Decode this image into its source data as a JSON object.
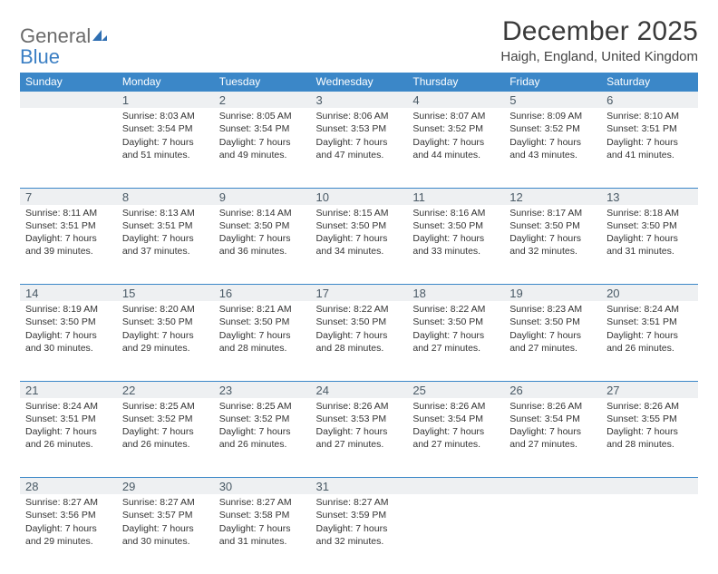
{
  "brand": {
    "general": "General",
    "blue": "Blue"
  },
  "title": "December 2025",
  "subtitle": "Haigh, England, United Kingdom",
  "weekdays": [
    "Sunday",
    "Monday",
    "Tuesday",
    "Wednesday",
    "Thursday",
    "Friday",
    "Saturday"
  ],
  "colors": {
    "header_bg": "#3b87c8",
    "header_text": "#ffffff",
    "daynum_bg": "#eef0f2",
    "daynum_text": "#4a5a66",
    "rule": "#3b87c8",
    "body_text": "#333333",
    "logo_gray": "#6b6b6b",
    "logo_blue": "#3b7fc4"
  },
  "fonts": {
    "title_size": 30,
    "subtitle_size": 15,
    "weekday_size": 12,
    "daynum_size": 13,
    "cell_size": 10.5
  },
  "weeks": [
    {
      "nums": [
        "",
        "1",
        "2",
        "3",
        "4",
        "5",
        "6"
      ],
      "cells": [
        "",
        "Sunrise: 8:03 AM\nSunset: 3:54 PM\nDaylight: 7 hours\nand 51 minutes.",
        "Sunrise: 8:05 AM\nSunset: 3:54 PM\nDaylight: 7 hours\nand 49 minutes.",
        "Sunrise: 8:06 AM\nSunset: 3:53 PM\nDaylight: 7 hours\nand 47 minutes.",
        "Sunrise: 8:07 AM\nSunset: 3:52 PM\nDaylight: 7 hours\nand 44 minutes.",
        "Sunrise: 8:09 AM\nSunset: 3:52 PM\nDaylight: 7 hours\nand 43 minutes.",
        "Sunrise: 8:10 AM\nSunset: 3:51 PM\nDaylight: 7 hours\nand 41 minutes."
      ]
    },
    {
      "nums": [
        "7",
        "8",
        "9",
        "10",
        "11",
        "12",
        "13"
      ],
      "cells": [
        "Sunrise: 8:11 AM\nSunset: 3:51 PM\nDaylight: 7 hours\nand 39 minutes.",
        "Sunrise: 8:13 AM\nSunset: 3:51 PM\nDaylight: 7 hours\nand 37 minutes.",
        "Sunrise: 8:14 AM\nSunset: 3:50 PM\nDaylight: 7 hours\nand 36 minutes.",
        "Sunrise: 8:15 AM\nSunset: 3:50 PM\nDaylight: 7 hours\nand 34 minutes.",
        "Sunrise: 8:16 AM\nSunset: 3:50 PM\nDaylight: 7 hours\nand 33 minutes.",
        "Sunrise: 8:17 AM\nSunset: 3:50 PM\nDaylight: 7 hours\nand 32 minutes.",
        "Sunrise: 8:18 AM\nSunset: 3:50 PM\nDaylight: 7 hours\nand 31 minutes."
      ]
    },
    {
      "nums": [
        "14",
        "15",
        "16",
        "17",
        "18",
        "19",
        "20"
      ],
      "cells": [
        "Sunrise: 8:19 AM\nSunset: 3:50 PM\nDaylight: 7 hours\nand 30 minutes.",
        "Sunrise: 8:20 AM\nSunset: 3:50 PM\nDaylight: 7 hours\nand 29 minutes.",
        "Sunrise: 8:21 AM\nSunset: 3:50 PM\nDaylight: 7 hours\nand 28 minutes.",
        "Sunrise: 8:22 AM\nSunset: 3:50 PM\nDaylight: 7 hours\nand 28 minutes.",
        "Sunrise: 8:22 AM\nSunset: 3:50 PM\nDaylight: 7 hours\nand 27 minutes.",
        "Sunrise: 8:23 AM\nSunset: 3:50 PM\nDaylight: 7 hours\nand 27 minutes.",
        "Sunrise: 8:24 AM\nSunset: 3:51 PM\nDaylight: 7 hours\nand 26 minutes."
      ]
    },
    {
      "nums": [
        "21",
        "22",
        "23",
        "24",
        "25",
        "26",
        "27"
      ],
      "cells": [
        "Sunrise: 8:24 AM\nSunset: 3:51 PM\nDaylight: 7 hours\nand 26 minutes.",
        "Sunrise: 8:25 AM\nSunset: 3:52 PM\nDaylight: 7 hours\nand 26 minutes.",
        "Sunrise: 8:25 AM\nSunset: 3:52 PM\nDaylight: 7 hours\nand 26 minutes.",
        "Sunrise: 8:26 AM\nSunset: 3:53 PM\nDaylight: 7 hours\nand 27 minutes.",
        "Sunrise: 8:26 AM\nSunset: 3:54 PM\nDaylight: 7 hours\nand 27 minutes.",
        "Sunrise: 8:26 AM\nSunset: 3:54 PM\nDaylight: 7 hours\nand 27 minutes.",
        "Sunrise: 8:26 AM\nSunset: 3:55 PM\nDaylight: 7 hours\nand 28 minutes."
      ]
    },
    {
      "nums": [
        "28",
        "29",
        "30",
        "31",
        "",
        "",
        ""
      ],
      "cells": [
        "Sunrise: 8:27 AM\nSunset: 3:56 PM\nDaylight: 7 hours\nand 29 minutes.",
        "Sunrise: 8:27 AM\nSunset: 3:57 PM\nDaylight: 7 hours\nand 30 minutes.",
        "Sunrise: 8:27 AM\nSunset: 3:58 PM\nDaylight: 7 hours\nand 31 minutes.",
        "Sunrise: 8:27 AM\nSunset: 3:59 PM\nDaylight: 7 hours\nand 32 minutes.",
        "",
        "",
        ""
      ]
    }
  ]
}
